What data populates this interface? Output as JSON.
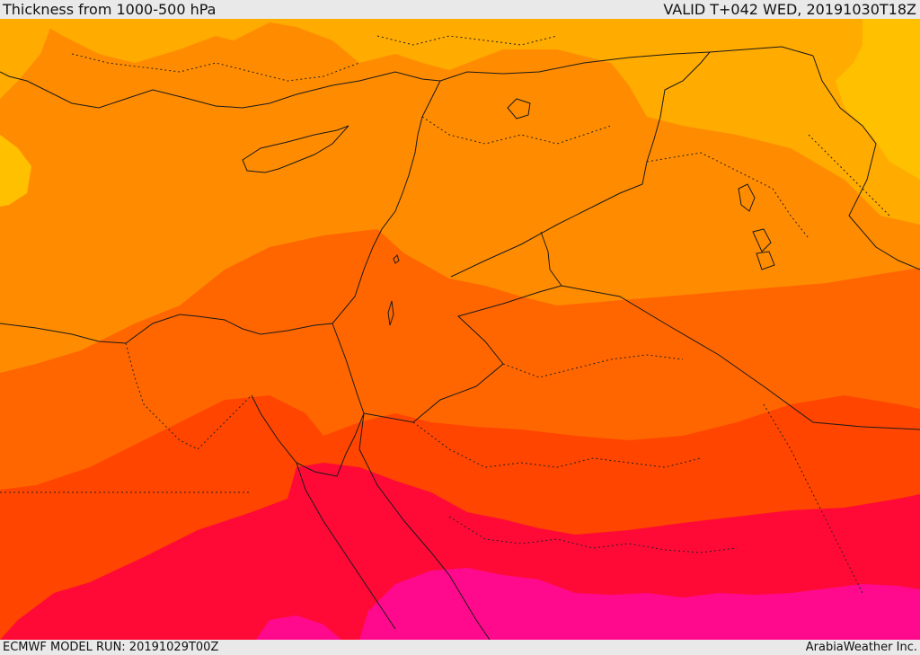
{
  "header": {
    "title": "Thickness from 1000-500 hPa",
    "valid": "VALID T+042 WED, 20191030T18Z"
  },
  "footer": {
    "model_run": "ECMWF MODEL RUN: 20191029T00Z",
    "credit": "ArabiaWeather Inc."
  },
  "map": {
    "colors": {
      "band_1": "#ffc000",
      "band_2": "#ffab00",
      "band_3": "#ff8c00",
      "band_4": "#ff6600",
      "band_5": "#ff4500",
      "band_6": "#ff0a37",
      "band_7": "#ff0a8c"
    }
  }
}
